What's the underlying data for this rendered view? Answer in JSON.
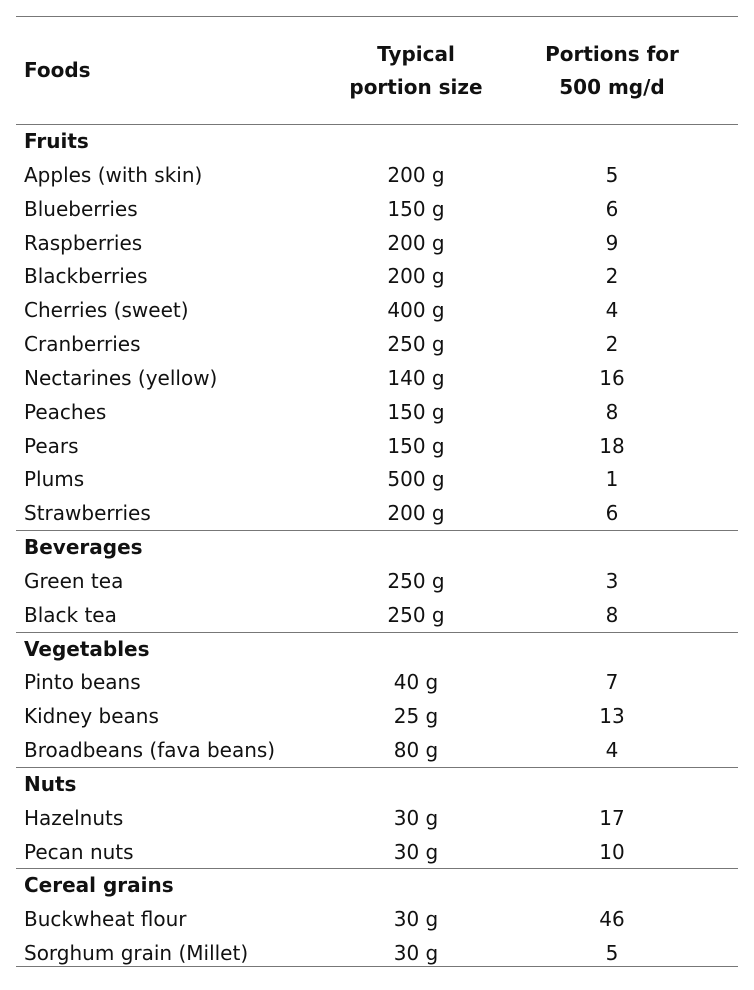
{
  "table": {
    "columns": [
      [
        "Foods"
      ],
      [
        "Typical",
        "portion size"
      ],
      [
        "Portions for",
        "500 mg/d"
      ]
    ],
    "sections": [
      {
        "name": "Fruits",
        "rows": [
          [
            "Apples (with skin)",
            "200 g",
            5
          ],
          [
            "Blueberries",
            "150 g",
            6
          ],
          [
            "Raspberries",
            "200 g",
            9
          ],
          [
            "Blackberries",
            "200 g",
            2
          ],
          [
            "Cherries (sweet)",
            "400 g",
            4
          ],
          [
            "Cranberries",
            "250 g",
            2
          ],
          [
            "Nectarines (yellow)",
            "140 g",
            16
          ],
          [
            "Peaches",
            "150 g",
            8
          ],
          [
            "Pears",
            "150 g",
            18
          ],
          [
            "Plums",
            "500 g",
            1
          ],
          [
            "Strawberries",
            "200 g",
            6
          ]
        ]
      },
      {
        "name": "Beverages",
        "rows": [
          [
            "Green tea",
            "250 g",
            3
          ],
          [
            "Black tea",
            "250 g",
            8
          ]
        ]
      },
      {
        "name": "Vegetables",
        "rows": [
          [
            "Pinto beans",
            "40 g",
            7
          ],
          [
            "Kidney beans",
            "25 g",
            13
          ],
          [
            "Broadbeans (fava beans)",
            "80 g",
            4
          ]
        ]
      },
      {
        "name": "Nuts",
        "rows": [
          [
            "Hazelnuts",
            "30 g",
            17
          ],
          [
            "Pecan nuts",
            "30 g",
            10
          ]
        ]
      },
      {
        "name": "Cereal grains",
        "rows": [
          [
            "Buckwheat flour",
            "30 g",
            46
          ],
          [
            "Sorghum grain (Millet)",
            "30 g",
            5
          ]
        ]
      }
    ]
  }
}
